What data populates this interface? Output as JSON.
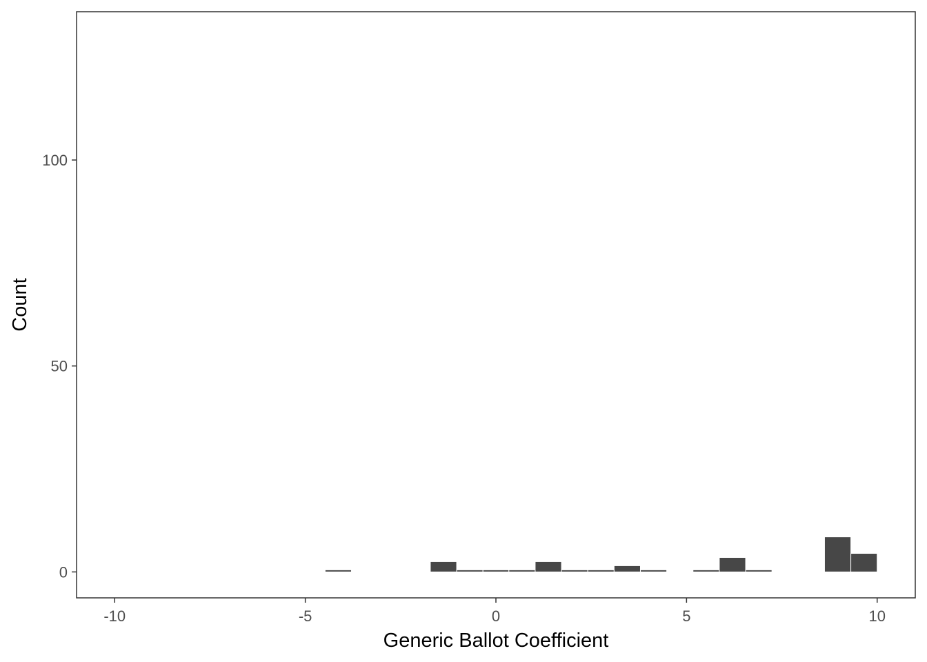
{
  "chart_data": {
    "type": "bar",
    "subtype": "histogram",
    "title": "",
    "xlabel": "Generic Ballot Coefficient",
    "ylabel": "Count",
    "xlim": [
      -11,
      11
    ],
    "ylim": [
      -6.3,
      136
    ],
    "x_ticks": [
      -10,
      -5,
      0,
      5,
      10
    ],
    "x_tick_labels": [
      "-10",
      "-5",
      "0",
      "5",
      "10"
    ],
    "y_ticks": [
      0,
      50,
      100
    ],
    "y_tick_labels": [
      "0",
      "50",
      "100"
    ],
    "grid": false,
    "legend": "none",
    "bin_width": 0.69,
    "bins": [
      {
        "x0": -4.48,
        "x1": -3.79,
        "count": 0.5
      },
      {
        "x0": -1.72,
        "x1": -1.03,
        "count": 2.5
      },
      {
        "x0": -1.03,
        "x1": -0.34,
        "count": 0.5
      },
      {
        "x0": -0.34,
        "x1": 0.34,
        "count": 0.5
      },
      {
        "x0": 0.34,
        "x1": 1.03,
        "count": 0.5
      },
      {
        "x0": 1.03,
        "x1": 1.72,
        "count": 2.5
      },
      {
        "x0": 1.72,
        "x1": 2.41,
        "count": 0.5
      },
      {
        "x0": 2.41,
        "x1": 3.1,
        "count": 0.5
      },
      {
        "x0": 3.1,
        "x1": 3.79,
        "count": 1.5
      },
      {
        "x0": 3.79,
        "x1": 4.48,
        "count": 0.5
      },
      {
        "x0": 5.17,
        "x1": 5.86,
        "count": 0.5
      },
      {
        "x0": 5.86,
        "x1": 6.55,
        "count": 3.5
      },
      {
        "x0": 6.55,
        "x1": 7.24,
        "count": 0.5
      },
      {
        "x0": 8.62,
        "x1": 9.31,
        "count": 8.5
      },
      {
        "x0": 9.31,
        "x1": 10.0,
        "count": 4.5
      }
    ],
    "colors": {
      "bar_fill": "#474747",
      "bar_outline": "#ffffff",
      "panel_border": "#333333",
      "tick_text": "#4d4d4d"
    }
  }
}
